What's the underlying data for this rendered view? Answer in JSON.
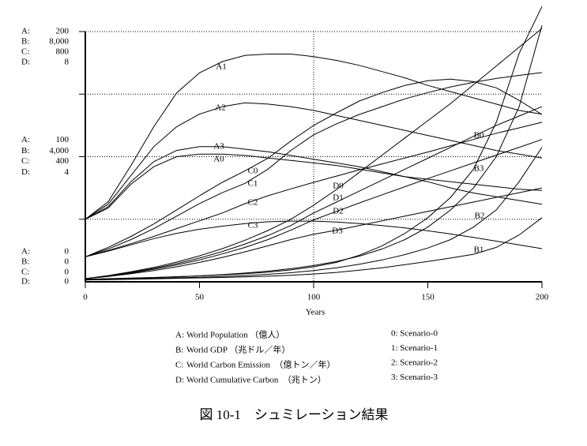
{
  "chart_data": {
    "type": "line",
    "x_label": "Years",
    "caption": "図 10-1　シュミレーション結果",
    "x": [
      0,
      10,
      20,
      30,
      40,
      50,
      60,
      70,
      80,
      90,
      100,
      110,
      120,
      130,
      140,
      150,
      160,
      170,
      180,
      190,
      200
    ],
    "xlim": [
      0,
      200
    ],
    "xticks": [
      0,
      50,
      100,
      150,
      200
    ],
    "xgrid": [
      100
    ],
    "ygrid": [
      50,
      100,
      150,
      200
    ],
    "grid_scale": "A:",
    "scales": [
      {
        "name": "A:",
        "legend_label": "World Population （億人）",
        "ylim": [
          0,
          200
        ],
        "yticks": [
          0,
          100,
          200
        ]
      },
      {
        "name": "B:",
        "legend_label": "World GDP （兆ドル／年）",
        "ylim": [
          0,
          8000
        ],
        "yticks": [
          0,
          {
            "value": 4000,
            "label": "4,000"
          },
          {
            "value": 8000,
            "label": "8,000"
          }
        ]
      },
      {
        "name": "C:",
        "legend_label": "World Carbon Emission　（億トン／年）",
        "ylim": [
          0,
          800
        ],
        "yticks": [
          0,
          400,
          800
        ]
      },
      {
        "name": "D:",
        "legend_label": "World Cumulative Carbon　（兆トン）",
        "ylim": [
          0,
          8
        ],
        "yticks": [
          0,
          4,
          8
        ]
      }
    ],
    "scenarios": [
      "0: Scenario-0",
      "1: Scenario-1",
      "2: Scenario-2",
      "3: Scenario-3"
    ],
    "series": [
      {
        "name": "A1",
        "axis": "A:",
        "color": "#000000",
        "values": [
          50,
          64,
          93,
          124,
          151,
          167,
          176,
          181,
          182,
          182,
          180,
          177,
          173,
          168,
          163,
          157,
          152,
          147,
          142,
          137,
          134
        ]
      },
      {
        "name": "A2",
        "axis": "A:",
        "color": "#000000",
        "values": [
          50,
          62,
          85,
          108,
          124,
          134,
          140,
          143,
          142,
          140,
          137,
          133,
          129,
          125,
          121,
          117,
          113,
          109,
          105,
          102,
          99
        ]
      },
      {
        "name": "A3",
        "axis": "A:",
        "color": "#000000",
        "values": [
          50,
          60,
          80,
          96,
          105,
          108,
          108,
          106,
          104,
          101,
          98,
          95,
          92,
          88,
          84,
          80,
          75,
          71,
          68,
          65,
          62
        ]
      },
      {
        "name": "A0",
        "axis": "A:",
        "color": "#000000",
        "values": [
          50,
          59,
          78,
          92,
          100,
          102,
          102,
          101,
          99,
          97,
          95,
          93,
          90,
          87,
          84,
          82,
          80,
          78,
          76,
          74,
          73
        ]
      },
      {
        "name": "C0",
        "axis": "C:",
        "color": "#000000",
        "values": [
          80,
          110,
          145,
          185,
          230,
          275,
          318,
          355,
          395,
          450,
          500,
          540,
          578,
          605,
          628,
          643,
          648,
          640,
          620,
          580,
          535
        ]
      },
      {
        "name": "C1",
        "axis": "C:",
        "color": "#000000",
        "values": [
          80,
          105,
          135,
          170,
          210,
          250,
          285,
          315,
          360,
          420,
          470,
          505,
          535,
          560,
          585,
          605,
          623,
          638,
          650,
          660,
          669
        ]
      },
      {
        "name": "C2",
        "axis": "C:",
        "color": "#000000",
        "values": [
          80,
          100,
          122,
          145,
          170,
          195,
          220,
          250,
          275,
          297,
          318,
          338,
          358,
          377,
          396,
          415,
          435,
          455,
          475,
          492,
          510
        ]
      },
      {
        "name": "C3",
        "axis": "C:",
        "color": "#000000",
        "values": [
          80,
          98,
          118,
          138,
          155,
          168,
          178,
          186,
          192,
          194,
          194,
          191,
          186,
          180,
          172,
          163,
          153,
          142,
          130,
          118,
          106
        ]
      },
      {
        "name": "D0",
        "axis": "D:",
        "color": "#000000",
        "values": [
          0.1,
          0.2,
          0.32,
          0.46,
          0.63,
          0.83,
          1.06,
          1.33,
          1.64,
          2.0,
          2.45,
          2.95,
          3.5,
          4.05,
          4.6,
          5.15,
          5.7,
          6.3,
          6.9,
          7.5,
          8.1
        ]
      },
      {
        "name": "D1",
        "axis": "D:",
        "color": "#000000",
        "values": [
          0.1,
          0.19,
          0.3,
          0.43,
          0.58,
          0.76,
          0.97,
          1.21,
          1.48,
          1.8,
          2.2,
          2.55,
          2.9,
          3.25,
          3.6,
          3.95,
          4.3,
          4.65,
          5.0,
          5.3,
          5.6
        ]
      },
      {
        "name": "D2",
        "axis": "D:",
        "color": "#000000",
        "values": [
          0.1,
          0.18,
          0.28,
          0.4,
          0.54,
          0.7,
          0.89,
          1.1,
          1.35,
          1.65,
          1.98,
          2.25,
          2.52,
          2.78,
          3.04,
          3.3,
          3.55,
          3.8,
          4.05,
          4.3,
          4.55
        ]
      },
      {
        "name": "D3",
        "axis": "D:",
        "color": "#000000",
        "values": [
          0.1,
          0.17,
          0.26,
          0.36,
          0.48,
          0.62,
          0.78,
          0.96,
          1.15,
          1.35,
          1.52,
          1.65,
          1.8,
          1.95,
          2.1,
          2.25,
          2.4,
          2.55,
          2.7,
          2.85,
          3.0
        ]
      },
      {
        "name": "B0",
        "axis": "B:",
        "color": "#000000",
        "values": [
          80,
          100,
          120,
          140,
          165,
          190,
          220,
          260,
          310,
          380,
          480,
          620,
          850,
          1150,
          1550,
          2050,
          2700,
          3600,
          5100,
          7300,
          8800
        ]
      },
      {
        "name": "B3",
        "axis": "B:",
        "color": "#000000",
        "values": [
          70,
          90,
          110,
          130,
          160,
          190,
          230,
          280,
          340,
          420,
          520,
          650,
          820,
          1050,
          1350,
          1750,
          2300,
          3000,
          4000,
          5600,
          8200
        ]
      },
      {
        "name": "B2",
        "axis": "B:",
        "color": "#000000",
        "values": [
          60,
          75,
          90,
          105,
          125,
          145,
          170,
          200,
          240,
          290,
          360,
          450,
          560,
          700,
          870,
          1080,
          1350,
          1750,
          2300,
          3200,
          4300
        ]
      },
      {
        "name": "B1",
        "axis": "B:",
        "color": "#000000",
        "values": [
          60,
          70,
          80,
          95,
          110,
          125,
          140,
          160,
          180,
          210,
          250,
          300,
          370,
          450,
          550,
          650,
          760,
          880,
          1100,
          1500,
          2050
        ]
      }
    ]
  }
}
